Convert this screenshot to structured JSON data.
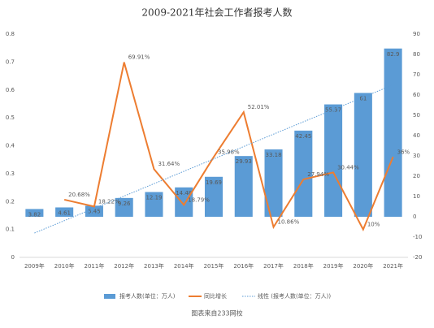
{
  "chart_data": {
    "type": "combo",
    "title": "2009-2021年社会工作者报考人数",
    "categories": [
      "2009年",
      "2010年",
      "2011年",
      "2012年",
      "2013年",
      "2014年",
      "2015年",
      "2016年",
      "2017年",
      "2018年",
      "2019年",
      "2020年",
      "2021年"
    ],
    "ylim": [
      0,
      0.8
    ],
    "yticks": [
      0,
      0.1,
      0.2,
      0.3,
      0.4,
      0.5,
      0.6,
      0.7,
      0.8
    ],
    "y2lim": [
      -20,
      90
    ],
    "y2ticks": [
      -20,
      -10,
      0,
      10,
      20,
      30,
      40,
      50,
      60,
      70,
      80,
      90
    ],
    "series": [
      {
        "name": "报考人数(单位：万人)",
        "type": "bar",
        "axis": "y2",
        "color": "#5b9bd5",
        "values": [
          3.82,
          4.61,
          5.45,
          9.26,
          12.19,
          14.48,
          19.69,
          29.93,
          33.18,
          42.45,
          55.37,
          61,
          82.9
        ]
      },
      {
        "name": "同比增长",
        "type": "line",
        "color": "#ed7d31",
        "values": [
          null,
          0.2068,
          0.1822,
          0.6991,
          0.3164,
          0.1879,
          0.3598,
          0.5201,
          0.1086,
          0.2794,
          0.3044,
          0.1,
          0.36
        ],
        "value_labels": [
          null,
          "20.68%",
          "18.22%",
          "69.91%",
          "31.64%",
          "18.79%",
          "35.98%",
          "52.01%",
          "10.86%",
          "27.94%",
          "30.44%",
          "10%",
          "36%"
        ]
      },
      {
        "name": "线性 (报考人数(单位：万人))",
        "type": "trend",
        "axis": "y2",
        "color": "#5b9bd5",
        "values": [
          -8,
          -1.9,
          4.2,
          10.2,
          16.3,
          22.4,
          28.5,
          34.6,
          40.7,
          46.8,
          52.8,
          58.9,
          65
        ]
      }
    ],
    "source": "图表来自233网校",
    "grid": false
  }
}
